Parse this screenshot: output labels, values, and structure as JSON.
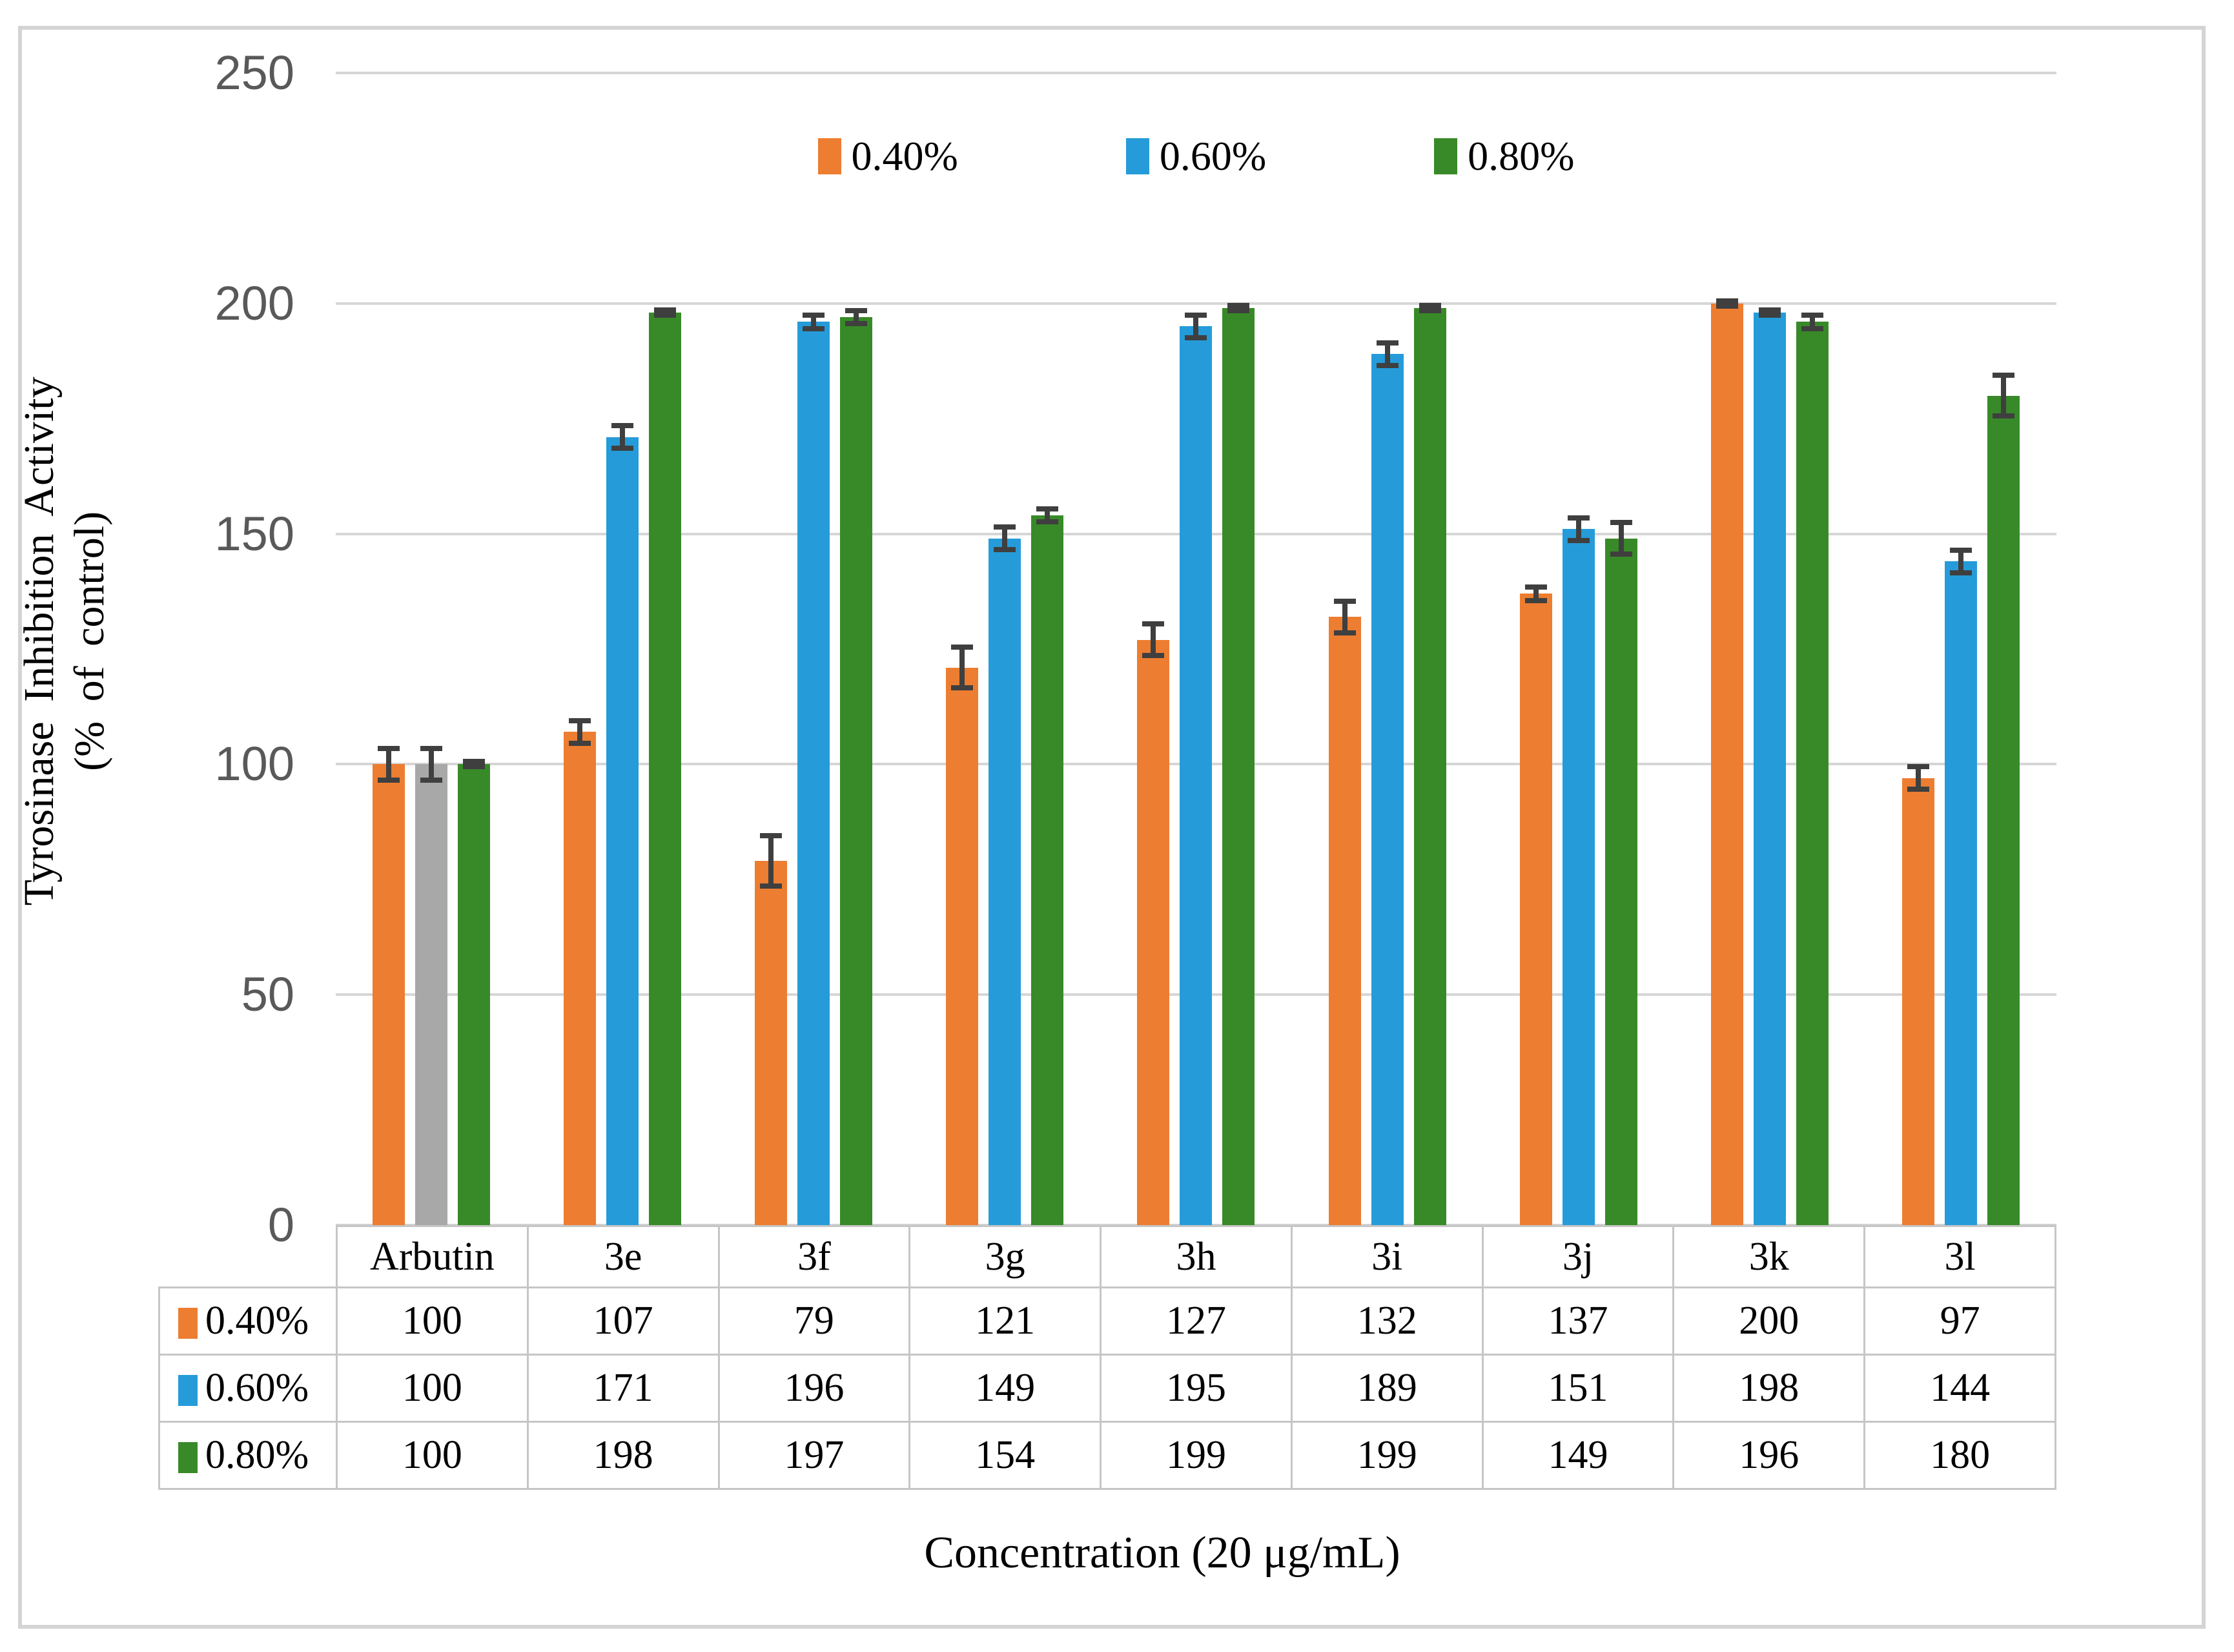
{
  "chart_data": {
    "type": "bar",
    "title": "",
    "categories": [
      "Arbutin",
      "3e",
      "3f",
      "3g",
      "3h",
      "3i",
      "3j",
      "3k",
      "3l"
    ],
    "series": [
      {
        "name": "0.40%",
        "color": "#ED7D31",
        "values": [
          100,
          107,
          79,
          121,
          127,
          132,
          137,
          200,
          97
        ],
        "errors": [
          4,
          3,
          6,
          5,
          4,
          4,
          2,
          1,
          3
        ]
      },
      {
        "name": "0.60%",
        "color": "#259CD9",
        "values": [
          100,
          171,
          196,
          149,
          195,
          189,
          151,
          198,
          144
        ],
        "errors": [
          4,
          3,
          2,
          3,
          3,
          3,
          3,
          1,
          3
        ],
        "bar_color_overrides": {
          "0": "#A8A8A8"
        }
      },
      {
        "name": "0.80%",
        "color": "#388A28",
        "values": [
          100,
          198,
          197,
          154,
          199,
          199,
          149,
          196,
          180
        ],
        "errors": [
          1,
          1,
          2,
          2,
          1,
          1,
          4,
          2,
          5
        ]
      }
    ],
    "ylabel_line1": "Tyrosinase Inhibition Activity",
    "ylabel_line2": "(% of control)",
    "xlabel": "Concentration (20 μg/mL)",
    "ylim": [
      0,
      250
    ],
    "yticks": [
      250,
      200,
      150,
      100,
      50,
      0
    ],
    "grid": true,
    "legend_position": "top",
    "data_table_shown": true,
    "error_bar_color": "#3F3F3F",
    "gridline_color": "#D6D6D6",
    "tick_label_color": "#595959"
  }
}
